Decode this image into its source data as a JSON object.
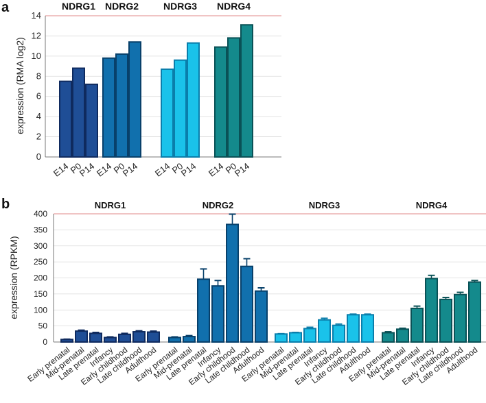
{
  "panels": [
    {
      "label": "a",
      "ylabel": "expression (RMA log2)",
      "ylim": [
        0,
        14
      ],
      "yticks": [
        0,
        2,
        4,
        6,
        8,
        10,
        12,
        14
      ]
    },
    {
      "label": "b",
      "ylabel": "expression (RPKM)",
      "ylim": [
        0,
        400
      ],
      "yticks": [
        0,
        50,
        100,
        150,
        200,
        250,
        300,
        350,
        400
      ]
    }
  ],
  "colors": {
    "NDRG1": {
      "fill": "#1f4e96",
      "edge": "#0f2a5e"
    },
    "NDRG2": {
      "fill": "#1170ad",
      "edge": "#08406a"
    },
    "NDRG3": {
      "fill": "#1ac2ea",
      "edge": "#0a7eab"
    },
    "NDRG4": {
      "fill": "#148a8c",
      "edge": "#0a5156"
    },
    "topline": "#e6a0a0",
    "grid": "#d9d9d9"
  },
  "chart_data": [
    {
      "type": "bar",
      "ylabel": "expression (RMA log2)",
      "ylim": [
        0,
        14
      ],
      "grid": true,
      "groups": [
        "NDRG1",
        "NDRG2",
        "NDRG3",
        "NDRG4"
      ],
      "categories": [
        "E14",
        "P0",
        "P14"
      ],
      "series": [
        {
          "name": "NDRG1",
          "values": [
            7.5,
            8.8,
            7.2
          ]
        },
        {
          "name": "NDRG2",
          "values": [
            9.8,
            10.2,
            11.4
          ]
        },
        {
          "name": "NDRG3",
          "values": [
            8.7,
            9.6,
            11.3
          ]
        },
        {
          "name": "NDRG4",
          "values": [
            10.9,
            11.8,
            13.1
          ]
        }
      ]
    },
    {
      "type": "bar",
      "ylabel": "expression (RPKM)",
      "ylim": [
        0,
        400
      ],
      "grid": true,
      "groups": [
        "NDRG1",
        "NDRG2",
        "NDRG3",
        "NDRG4"
      ],
      "categories": [
        "Early prenatal",
        "Mid-prenatal",
        "Late prenatal",
        "Infancy",
        "Early childhood",
        "Late childhood",
        "Adulthood"
      ],
      "series": [
        {
          "name": "NDRG1",
          "values": [
            8,
            34,
            27,
            14,
            24,
            32,
            31
          ],
          "errors": [
            1,
            3,
            3,
            2,
            3,
            3,
            3
          ]
        },
        {
          "name": "NDRG2",
          "values": [
            14,
            17,
            196,
            175,
            367,
            236,
            159
          ],
          "errors": [
            2,
            3,
            32,
            17,
            32,
            24,
            10
          ]
        },
        {
          "name": "NDRG3",
          "values": [
            25,
            29,
            42,
            69,
            52,
            85,
            85
          ],
          "errors": [
            1,
            1,
            4,
            5,
            4,
            2,
            2
          ]
        },
        {
          "name": "NDRG4",
          "values": [
            29,
            40,
            105,
            198,
            133,
            148,
            187
          ],
          "errors": [
            3,
            3,
            7,
            10,
            6,
            7,
            5
          ]
        }
      ]
    }
  ]
}
